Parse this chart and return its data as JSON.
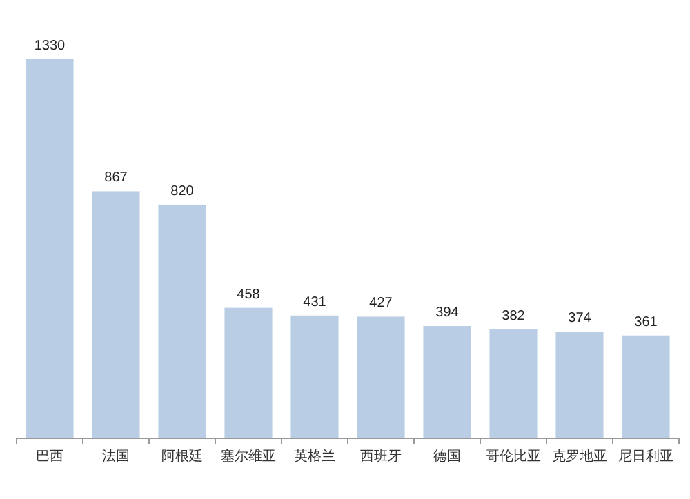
{
  "chart_data": {
    "type": "bar",
    "categories": [
      "巴西",
      "法国",
      "阿根廷",
      "塞尔维亚",
      "英格兰",
      "西班牙",
      "德国",
      "哥伦比亚",
      "克罗地亚",
      "尼日利亚"
    ],
    "values": [
      1330,
      867,
      820,
      458,
      431,
      427,
      394,
      382,
      374,
      361
    ],
    "color": "#b9cde5",
    "data_labels": true
  }
}
